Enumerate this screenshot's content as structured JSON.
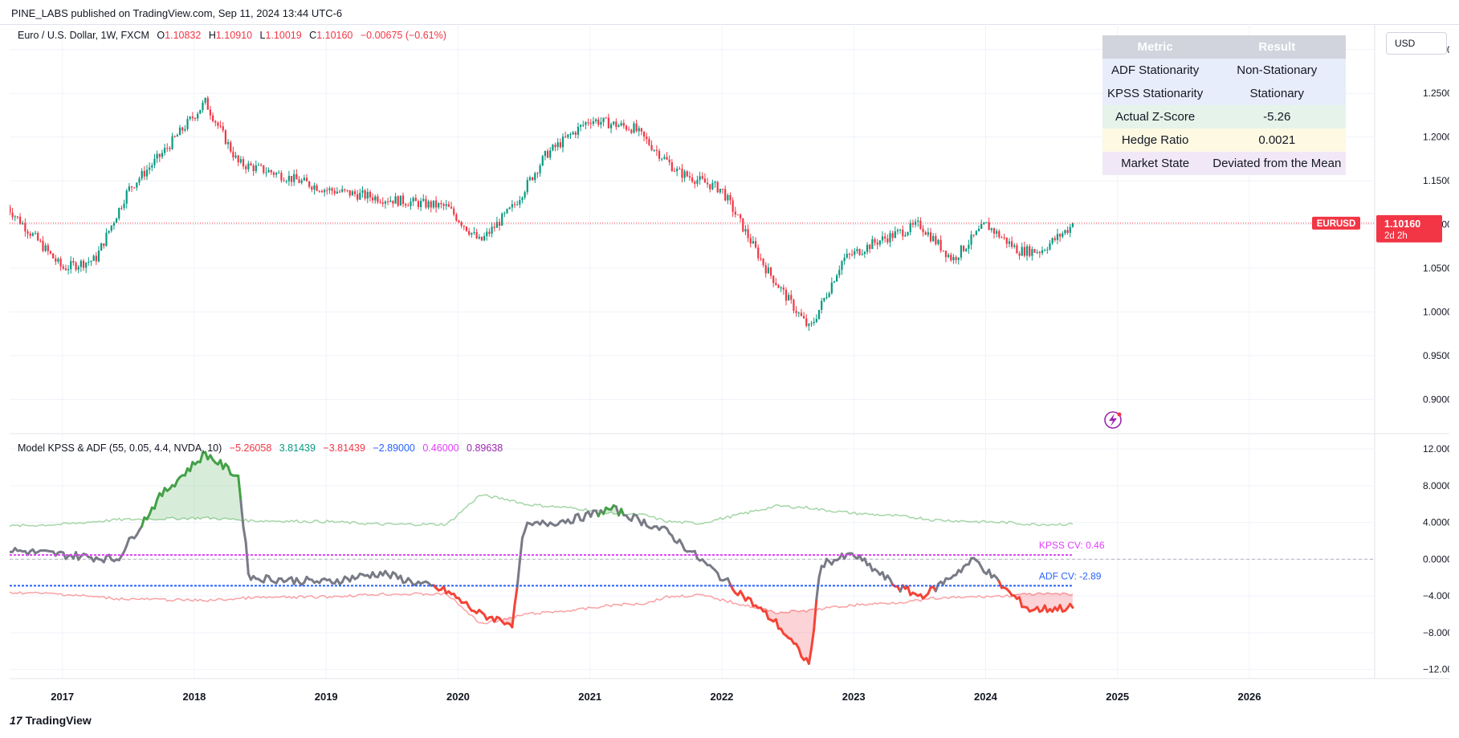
{
  "header": {
    "published": "PINE_LABS published on TradingView.com, Sep 11, 2024 13:44 UTC-6"
  },
  "main_legend": {
    "symbol": "Euro / U.S. Dollar, 1W, FXCM",
    "open_label": "O",
    "open": "1.10832",
    "high_label": "H",
    "high": "1.10910",
    "low_label": "L",
    "low": "1.10019",
    "close_label": "C",
    "close": "1.10160",
    "change": "−0.00675 (−0.61%)"
  },
  "currency_button": "USD",
  "price_axis": [
    "1.30000",
    "1.25000",
    "1.20000",
    "1.15000",
    "1.10000",
    "1.05000",
    "1.00000",
    "0.95000",
    "0.90000"
  ],
  "last_price_label": {
    "symbol": "EURUSD",
    "price": "1.10160",
    "countdown": "2d 2h"
  },
  "indicator_legend": {
    "name": "Model KPSS & ADF (55, 0.05, 4.4, NVDA, 10)",
    "values": [
      {
        "text": "−5.26058",
        "color": "#f23645"
      },
      {
        "text": "3.81439",
        "color": "#089981"
      },
      {
        "text": "−3.81439",
        "color": "#f23645"
      },
      {
        "text": "−2.89000",
        "color": "#2962ff"
      },
      {
        "text": "0.46000",
        "color": "#e040fb"
      },
      {
        "text": "0.89638",
        "color": "#9c27b0"
      }
    ]
  },
  "indicator_axis": [
    "12.00000",
    "8.00000",
    "4.00000",
    "0.00000",
    "−4.00000",
    "−8.00000",
    "−12.00000"
  ],
  "cv_labels": {
    "kpss": "KPSS CV: 0.46",
    "adf": "ADF CV: -2.89"
  },
  "time_axis": [
    "2017",
    "2018",
    "2019",
    "2020",
    "2021",
    "2022",
    "2023",
    "2024",
    "2025",
    "2026"
  ],
  "stats_table": {
    "headers": [
      "Metric",
      "Result"
    ],
    "rows": [
      {
        "metric": "ADF Stationarity",
        "result": "Non-Stationary",
        "bg": "#e8edfb"
      },
      {
        "metric": "KPSS Stationarity",
        "result": "Stationary",
        "bg": "#e8edfb"
      },
      {
        "metric": "Actual Z-Score",
        "result": "-5.26",
        "bg": "#e6f3ea"
      },
      {
        "metric": "Hedge Ratio",
        "result": "0.0021",
        "bg": "#fdf9e3"
      },
      {
        "metric": "Market State",
        "result": "Deviated from the Mean",
        "bg": "#f1e8f7"
      }
    ]
  },
  "footer": {
    "brand": "TradingView"
  },
  "colors": {
    "up": "#089981",
    "down": "#f23645",
    "kpss": "#e040fb",
    "adf": "#2962ff",
    "zline": "#787b86"
  },
  "chart_data": [
    {
      "type": "candlestick",
      "title": "Euro / U.S. Dollar, 1W, FXCM",
      "x": [
        "2016-08",
        "2017-01",
        "2017-04",
        "2017-07",
        "2017-10",
        "2018-02",
        "2018-05",
        "2018-08",
        "2019-01",
        "2019-06",
        "2019-12",
        "2020-03",
        "2020-06",
        "2020-09",
        "2021-01",
        "2021-05",
        "2021-09",
        "2022-01",
        "2022-05",
        "2022-09",
        "2022-12",
        "2023-03",
        "2023-07",
        "2023-10",
        "2024-01",
        "2024-04",
        "2024-06",
        "2024-09"
      ],
      "close": [
        1.12,
        1.05,
        1.06,
        1.14,
        1.18,
        1.24,
        1.17,
        1.16,
        1.14,
        1.13,
        1.12,
        1.08,
        1.12,
        1.18,
        1.22,
        1.21,
        1.16,
        1.14,
        1.05,
        0.98,
        1.06,
        1.08,
        1.1,
        1.06,
        1.1,
        1.07,
        1.07,
        1.1
      ],
      "ylim": [
        0.87,
        1.32
      ],
      "last_price": 1.1016
    },
    {
      "type": "line",
      "title": "Model KPSS & ADF (55, 0.05, 4.4, NVDA, 10)",
      "x": [
        "2016-08",
        "2017-01",
        "2017-06",
        "2017-10",
        "2018-02",
        "2018-05",
        "2018-06",
        "2019-01",
        "2019-06",
        "2019-12",
        "2020-03",
        "2020-06",
        "2020-07",
        "2020-12",
        "2021-03",
        "2021-06",
        "2021-08",
        "2021-11",
        "2022-02",
        "2022-06",
        "2022-09",
        "2022-10",
        "2023-01",
        "2023-05",
        "2023-07",
        "2023-08",
        "2023-12",
        "2024-03",
        "2024-05",
        "2024-09"
      ],
      "series": [
        {
          "name": "Z-Score",
          "values": [
            1.0,
            0.5,
            0.0,
            7.0,
            11.5,
            9.0,
            -2.0,
            -2.5,
            -1.5,
            -3.5,
            -6.0,
            -7.0,
            3.5,
            4.5,
            5.5,
            4.0,
            3.0,
            0.0,
            -3.0,
            -7.0,
            -11.5,
            -0.5,
            0.5,
            -3.0,
            -4.0,
            -3.5,
            0.0,
            -3.5,
            -5.5,
            -5.26
          ]
        },
        {
          "name": "Upper Band",
          "values": [
            3.6,
            3.8,
            4.3,
            4.4,
            4.5,
            4.3,
            4.2,
            4.1,
            3.8,
            3.8,
            7.0,
            6.4,
            6.0,
            5.5,
            5.0,
            4.8,
            4.1,
            3.9,
            4.7,
            5.8,
            5.6,
            5.4,
            5.0,
            4.7,
            4.5,
            4.3,
            4.1,
            4.0,
            3.8,
            3.81
          ]
        },
        {
          "name": "Lower Band",
          "values": [
            -3.6,
            -3.8,
            -4.3,
            -4.4,
            -4.5,
            -4.3,
            -4.2,
            -4.1,
            -3.8,
            -3.8,
            -7.0,
            -6.4,
            -6.0,
            -5.5,
            -5.0,
            -4.8,
            -4.1,
            -3.9,
            -4.7,
            -5.8,
            -5.6,
            -5.4,
            -5.0,
            -4.7,
            -4.5,
            -4.3,
            -4.1,
            -4.0,
            -3.8,
            -3.81
          ]
        },
        {
          "name": "KPSS CV",
          "values": [
            0.46,
            0.46,
            0.46,
            0.46,
            0.46,
            0.46,
            0.46,
            0.46,
            0.46,
            0.46,
            0.46,
            0.46,
            0.46,
            0.46,
            0.46,
            0.46,
            0.46,
            0.46,
            0.46,
            0.46,
            0.46,
            0.46,
            0.46,
            0.46,
            0.46,
            0.46,
            0.46,
            0.46,
            0.46,
            0.46
          ]
        },
        {
          "name": "ADF CV",
          "values": [
            -2.89,
            -2.89,
            -2.89,
            -2.89,
            -2.89,
            -2.89,
            -2.89,
            -2.89,
            -2.89,
            -2.89,
            -2.89,
            -2.89,
            -2.89,
            -2.89,
            -2.89,
            -2.89,
            -2.89,
            -2.89,
            -2.89,
            -2.89,
            -2.89,
            -2.89,
            -2.89,
            -2.89,
            -2.89,
            -2.89,
            -2.89,
            -2.89,
            -2.89,
            -2.89
          ]
        }
      ],
      "ylim": [
        -13,
        13.5
      ]
    }
  ]
}
